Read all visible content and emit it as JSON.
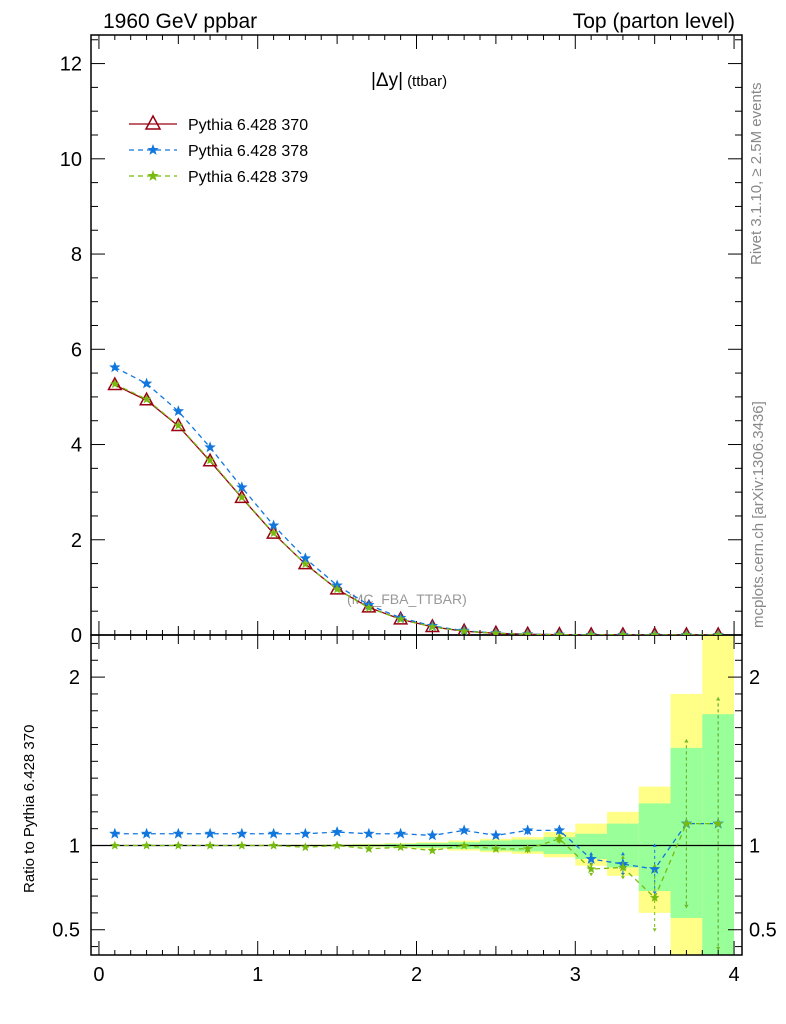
{
  "header": {
    "left": "1960 GeV ppbar",
    "right": "Top (parton level)"
  },
  "side": {
    "rivet": "Rivet 3.1.10, ≥ 2.5M events",
    "mcplots": "mcplots.cern.ch [arXiv:1306.3436]"
  },
  "plot_title": {
    "main": "|Δy|",
    "sub": "(ttbar)"
  },
  "watermark": "(MC_FBA_TTBAR)",
  "colors": {
    "p370": "#990011",
    "p378": "#1177dd",
    "p379": "#77bb11",
    "band_yellow": "#ffff88",
    "band_green": "#99ff99"
  },
  "chart_data": [
    {
      "type": "line",
      "panel": "main",
      "x": [
        0.1,
        0.3,
        0.5,
        0.7,
        0.9,
        1.1,
        1.3,
        1.5,
        1.7,
        1.9,
        2.1,
        2.3,
        2.5,
        2.7,
        2.9,
        3.1,
        3.3,
        3.5,
        3.7,
        3.9
      ],
      "xlim": [
        -0.05,
        4.05
      ],
      "ylim": [
        0,
        12.6
      ],
      "xticks": [
        "0",
        "1",
        "2",
        "3",
        "4"
      ],
      "yticks": [
        "0",
        "2",
        "4",
        "6",
        "8",
        "10",
        "12"
      ],
      "legend_position": "top-left",
      "series": [
        {
          "name": "Pythia 6.428 370",
          "color": "#990011",
          "marker": "triangle",
          "dash": "solid",
          "values": [
            5.25,
            4.93,
            4.39,
            3.65,
            2.88,
            2.13,
            1.49,
            0.96,
            0.58,
            0.33,
            0.17,
            0.08,
            0.036,
            0.015,
            0.006,
            0.002,
            0.001,
            0.0004,
            0.0001,
            4e-05
          ]
        },
        {
          "name": "Pythia 6.428 378",
          "color": "#1177dd",
          "marker": "star",
          "dash": "dashed",
          "values": [
            5.62,
            5.28,
            4.7,
            3.94,
            3.1,
            2.3,
            1.61,
            1.04,
            0.63,
            0.36,
            0.19,
            0.09,
            0.039,
            0.017,
            0.007,
            0.002,
            0.001,
            0.0004,
            0.0001,
            4e-05
          ]
        },
        {
          "name": "Pythia 6.428 379",
          "color": "#77bb11",
          "marker": "star",
          "dash": "dashed",
          "values": [
            5.27,
            4.95,
            4.4,
            3.67,
            2.89,
            2.14,
            1.49,
            0.96,
            0.57,
            0.33,
            0.17,
            0.08,
            0.035,
            0.015,
            0.006,
            0.002,
            0.001,
            0.0003,
            0.0001,
            4e-05
          ]
        }
      ]
    },
    {
      "type": "line",
      "panel": "ratio",
      "ylabel": "Ratio to Pythia 6.428 370",
      "ylim": [
        0.35,
        2.25
      ],
      "yticks": [
        "0.5",
        "1",
        "2"
      ],
      "x": [
        0.1,
        0.3,
        0.5,
        0.7,
        0.9,
        1.1,
        1.3,
        1.5,
        1.7,
        1.9,
        2.1,
        2.3,
        2.5,
        2.7,
        2.9,
        3.1,
        3.3,
        3.5,
        3.7,
        3.9
      ],
      "band_edges": [
        0.0,
        0.2,
        0.4,
        0.6,
        0.8,
        1.0,
        1.2,
        1.4,
        1.6,
        1.8,
        2.0,
        2.2,
        2.4,
        2.6,
        2.8,
        3.0,
        3.2,
        3.4,
        3.6,
        3.8,
        4.0
      ],
      "band_yellow": [
        [
          0.998,
          1.002
        ],
        [
          0.998,
          1.002
        ],
        [
          0.998,
          1.002
        ],
        [
          0.997,
          1.003
        ],
        [
          0.997,
          1.003
        ],
        [
          0.996,
          1.004
        ],
        [
          0.995,
          1.005
        ],
        [
          0.994,
          1.006
        ],
        [
          0.99,
          1.01
        ],
        [
          0.986,
          1.014
        ],
        [
          0.98,
          1.02
        ],
        [
          0.97,
          1.03
        ],
        [
          0.96,
          1.04
        ],
        [
          0.95,
          1.05
        ],
        [
          0.93,
          1.08
        ],
        [
          0.88,
          1.13
        ],
        [
          0.82,
          1.2
        ],
        [
          0.6,
          1.35
        ],
        [
          0.2,
          1.9
        ],
        [
          0.2,
          2.25
        ]
      ],
      "band_green": [
        [
          0.999,
          1.001
        ],
        [
          0.999,
          1.001
        ],
        [
          0.999,
          1.001
        ],
        [
          0.998,
          1.002
        ],
        [
          0.998,
          1.002
        ],
        [
          0.998,
          1.002
        ],
        [
          0.997,
          1.003
        ],
        [
          0.996,
          1.004
        ],
        [
          0.994,
          1.006
        ],
        [
          0.99,
          1.01
        ],
        [
          0.986,
          1.014
        ],
        [
          0.98,
          1.02
        ],
        [
          0.97,
          1.03
        ],
        [
          0.965,
          1.035
        ],
        [
          0.95,
          1.05
        ],
        [
          0.92,
          1.07
        ],
        [
          0.87,
          1.13
        ],
        [
          0.73,
          1.25
        ],
        [
          0.57,
          1.58
        ],
        [
          0.2,
          1.78
        ]
      ],
      "series": [
        {
          "name": "Pythia 6.428 378",
          "color": "#1177dd",
          "marker": "star",
          "values": [
            1.07,
            1.07,
            1.07,
            1.07,
            1.07,
            1.07,
            1.07,
            1.08,
            1.07,
            1.07,
            1.06,
            1.09,
            1.06,
            1.09,
            1.09,
            0.92,
            0.89,
            0.86,
            1.13,
            1.13
          ],
          "errors": [
            0.003,
            0.003,
            0.003,
            0.003,
            0.004,
            0.004,
            0.005,
            0.006,
            0.007,
            0.009,
            0.012,
            0.015,
            0.018,
            0.025,
            0.03,
            0.04,
            0.07,
            0.15,
            0.5,
            0.75
          ]
        },
        {
          "name": "Pythia 6.428 379",
          "color": "#77bb11",
          "marker": "star",
          "values": [
            1.0,
            1.0,
            1.0,
            1.0,
            1.0,
            1.0,
            0.99,
            1.0,
            0.98,
            0.99,
            0.97,
            1.0,
            0.98,
            0.98,
            1.04,
            0.86,
            0.87,
            0.69,
            1.13,
            1.13
          ],
          "errors": [
            0.003,
            0.003,
            0.003,
            0.003,
            0.004,
            0.004,
            0.005,
            0.006,
            0.007,
            0.009,
            0.012,
            0.015,
            0.018,
            0.025,
            0.03,
            0.04,
            0.07,
            0.2,
            0.5,
            0.75
          ]
        }
      ]
    }
  ]
}
